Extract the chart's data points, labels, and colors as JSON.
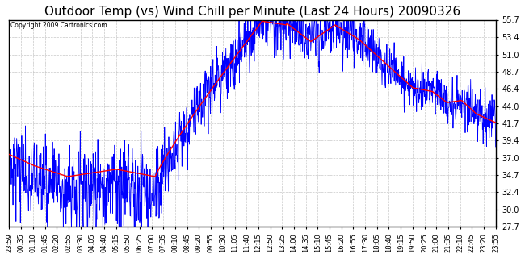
{
  "title": "Outdoor Temp (vs) Wind Chill per Minute (Last 24 Hours) 20090326",
  "copyright_text": "Copyright 2009 Cartronics.com",
  "ylim": [
    27.7,
    55.7
  ],
  "yticks": [
    27.7,
    30.0,
    32.4,
    34.7,
    37.0,
    39.4,
    41.7,
    44.0,
    46.4,
    48.7,
    51.0,
    53.4,
    55.7
  ],
  "background_color": "#ffffff",
  "plot_bg_color": "#ffffff",
  "grid_color": "#c8c8c8",
  "title_fontsize": 11,
  "red_line_color": "#ff0000",
  "blue_line_color": "#0000ff",
  "x_labels": [
    "23:59",
    "00:35",
    "01:10",
    "01:45",
    "02:20",
    "02:55",
    "03:30",
    "04:05",
    "04:40",
    "05:15",
    "05:50",
    "06:25",
    "07:00",
    "07:35",
    "08:10",
    "08:45",
    "09:20",
    "09:55",
    "10:30",
    "11:05",
    "11:40",
    "12:15",
    "12:50",
    "13:25",
    "14:00",
    "14:35",
    "15:10",
    "15:45",
    "16:20",
    "16:55",
    "17:30",
    "18:05",
    "18:40",
    "19:15",
    "19:50",
    "20:25",
    "21:00",
    "21:35",
    "22:10",
    "22:45",
    "23:20",
    "23:55"
  ]
}
